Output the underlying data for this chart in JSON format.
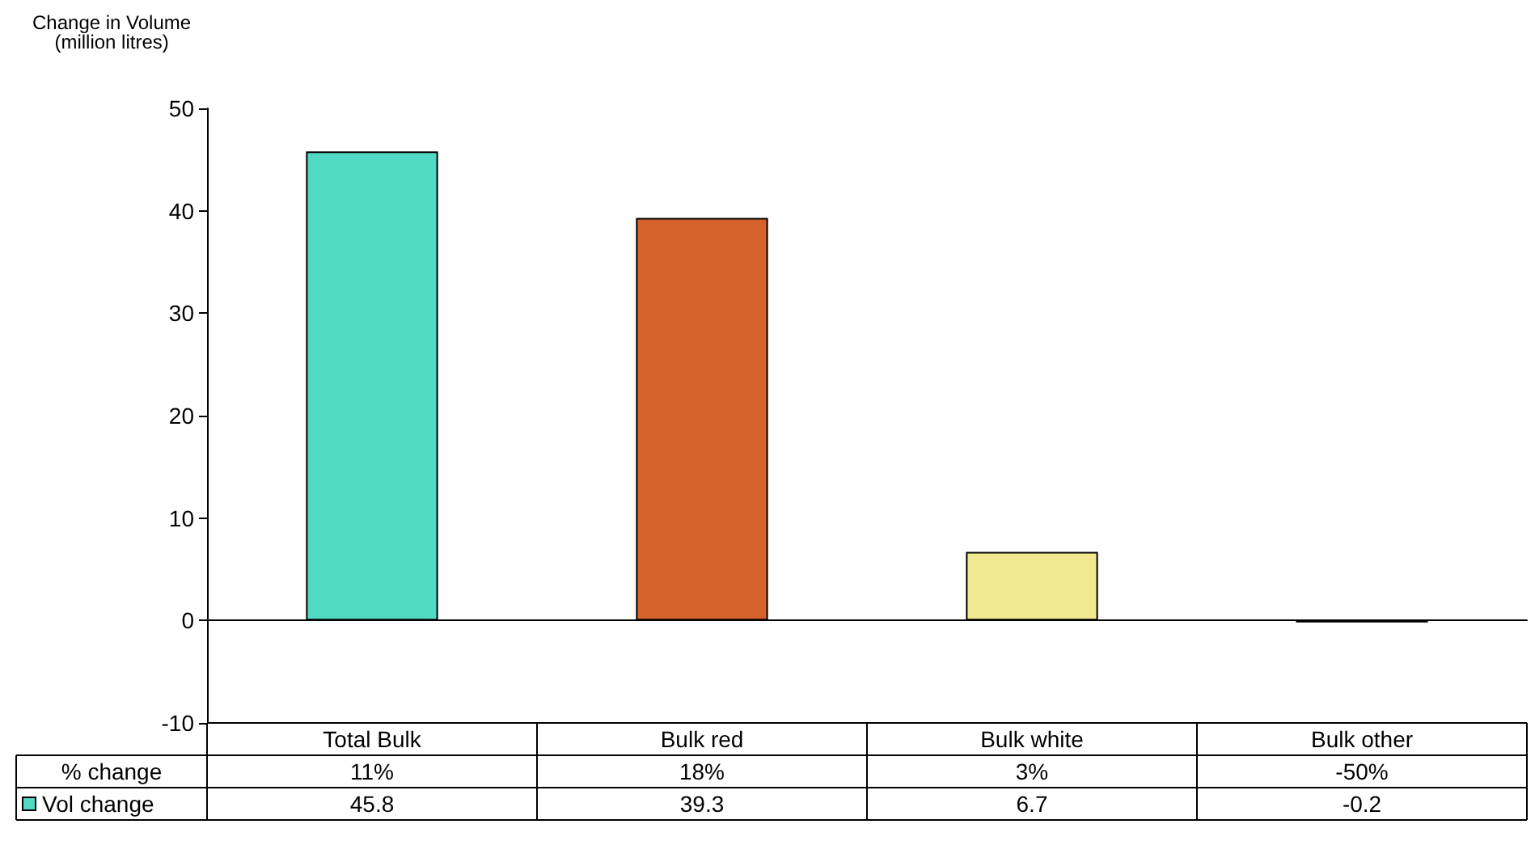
{
  "chart_data": {
    "type": "bar",
    "ylabel": "Change in Volume\n(million litres)",
    "categories": [
      "Total Bulk",
      "Bulk red",
      "Bulk white",
      "Bulk other"
    ],
    "series": [
      {
        "name": "Vol change",
        "color": "#52d9c3",
        "colors": [
          "#52d9c3",
          "#d4622a",
          "#f0e98f",
          "#8080c0"
        ],
        "values": [
          45.8,
          39.3,
          6.7,
          -0.2
        ]
      }
    ],
    "ylim": [
      -10,
      50
    ],
    "yticks": [
      -10,
      0,
      10,
      20,
      30,
      40,
      50
    ],
    "data_labels": true,
    "annotations": [
      "% change",
      "11%",
      "18%",
      "3%",
      "-50%"
    ]
  }
}
